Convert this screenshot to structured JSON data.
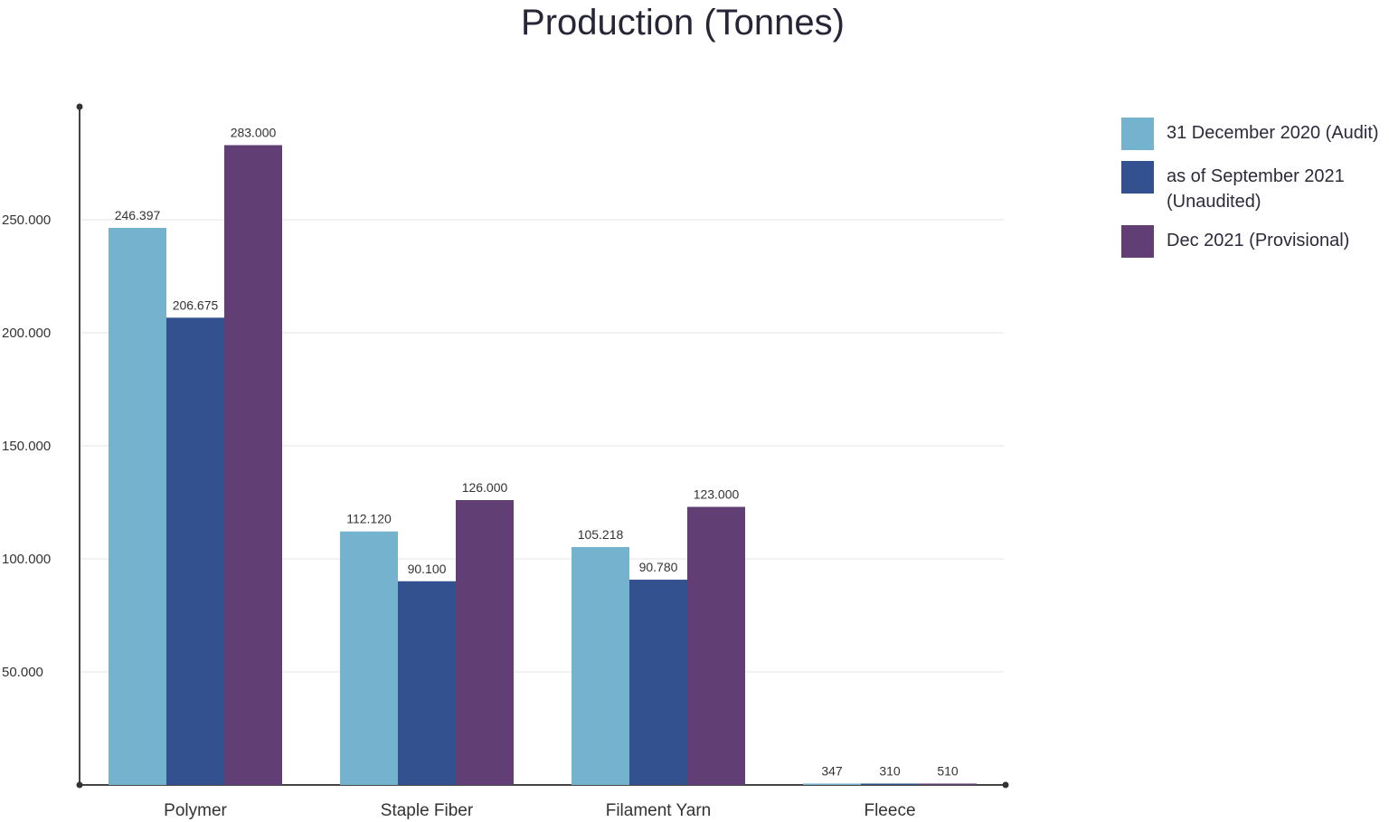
{
  "chart_data": {
    "type": "bar",
    "title": "Production (Tonnes)",
    "xlabel": "",
    "ylabel": "",
    "ylim": [
      0,
      300000
    ],
    "yticks": [
      50000,
      100000,
      150000,
      200000,
      250000
    ],
    "ytick_labels": [
      "50.000",
      "100.000",
      "150.000",
      "200.000",
      "250.000"
    ],
    "grid": true,
    "legend_position": "top-right",
    "categories": [
      "Polymer",
      "Staple Fiber",
      "Filament Yarn",
      "Fleece"
    ],
    "series": [
      {
        "name": "31 December 2020 (Audit)",
        "color": "#74b2ce",
        "values": [
          246397,
          112120,
          105218,
          347
        ],
        "labels": [
          "246.397",
          "112.120",
          "105.218",
          "347"
        ]
      },
      {
        "name": "as of September 2021 (Unaudited)",
        "color": "#33508f",
        "values": [
          206675,
          90100,
          90780,
          310
        ],
        "labels": [
          "206.675",
          "90.100",
          "90.780",
          "310"
        ]
      },
      {
        "name": "Dec 2021 (Provisional)",
        "color": "#613f74",
        "values": [
          283000,
          126000,
          123000,
          510
        ],
        "labels": [
          "283.000",
          "126.000",
          "123.000",
          "510"
        ]
      }
    ]
  }
}
